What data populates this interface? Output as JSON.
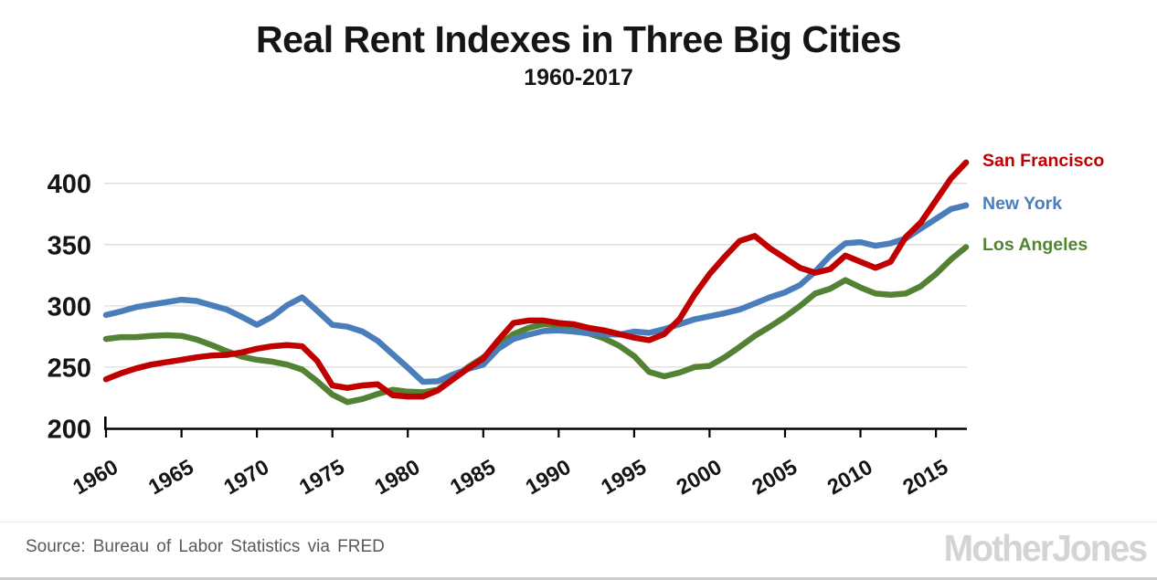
{
  "header": {
    "title": "Real Rent Indexes in Three Big Cities",
    "subtitle": "1960-2017"
  },
  "chart_data": {
    "type": "line",
    "title": "Real Rent Indexes in Three Big Cities",
    "subtitle": "1960-2017",
    "xlabel": "",
    "ylabel": "",
    "xlim": [
      1960,
      2017
    ],
    "ylim": [
      200,
      420
    ],
    "yticks": [
      200,
      250,
      300,
      350,
      400
    ],
    "xticks": [
      1960,
      1965,
      1970,
      1975,
      1980,
      1985,
      1990,
      1995,
      2000,
      2005,
      2010,
      2015
    ],
    "grid": "horizontal",
    "grid_color": "#dcdcdc",
    "axis_color": "#000000",
    "legend_position": "right-outside",
    "x": [
      1960,
      1961,
      1962,
      1963,
      1964,
      1965,
      1966,
      1967,
      1968,
      1969,
      1970,
      1971,
      1972,
      1973,
      1974,
      1975,
      1976,
      1977,
      1978,
      1979,
      1980,
      1981,
      1982,
      1983,
      1984,
      1985,
      1986,
      1987,
      1988,
      1989,
      1990,
      1991,
      1992,
      1993,
      1994,
      1995,
      1996,
      1997,
      1998,
      1999,
      2000,
      2001,
      2002,
      2003,
      2004,
      2005,
      2006,
      2007,
      2008,
      2009,
      2010,
      2011,
      2012,
      2013,
      2014,
      2015,
      2016,
      2017
    ],
    "series": [
      {
        "name": "San Francisco",
        "color": "#c00000",
        "values": [
          240,
          245,
          249,
          252,
          254,
          256,
          258,
          259.5,
          260,
          262,
          265,
          267,
          268,
          267,
          255,
          235,
          233,
          235,
          236,
          227,
          226,
          226,
          231,
          240,
          249,
          257,
          272,
          286,
          288,
          288,
          286,
          285,
          282,
          280,
          277,
          274,
          272,
          277,
          289,
          309,
          326,
          340,
          353,
          357,
          347,
          339,
          331,
          327,
          330,
          341,
          336,
          331,
          336,
          356,
          368,
          386,
          404,
          417
        ]
      },
      {
        "name": "New York",
        "color": "#4a7ebb",
        "values": [
          292.5,
          295.5,
          299,
          301,
          303,
          305,
          304,
          300.5,
          297,
          291,
          284.5,
          291,
          300.5,
          307,
          296,
          284.5,
          283,
          279,
          271.5,
          260.5,
          249.5,
          238,
          238.5,
          244,
          248.5,
          252,
          265,
          273,
          276.5,
          279.5,
          280,
          279,
          277.5,
          277,
          276.5,
          279,
          278,
          281,
          285,
          289,
          291.5,
          294,
          297,
          302,
          307,
          311,
          317,
          328,
          341,
          351,
          352,
          349,
          351,
          355,
          363,
          371,
          379,
          382
        ]
      },
      {
        "name": "Los Angeles",
        "color": "#548235",
        "values": [
          273,
          274.5,
          274.5,
          275.5,
          276,
          275.5,
          272.5,
          268,
          263,
          258.5,
          256,
          254.5,
          252,
          248,
          238.5,
          227.5,
          221.5,
          224,
          228,
          231.5,
          230,
          229.5,
          231.5,
          241,
          250,
          258,
          267,
          277,
          282,
          285,
          284,
          281,
          277.5,
          273.5,
          267.5,
          259,
          246,
          242.5,
          245.5,
          250,
          251,
          258,
          266.5,
          275.5,
          283,
          291,
          300,
          310,
          314,
          321,
          315,
          310,
          309,
          310,
          316,
          326,
          338,
          348
        ]
      }
    ]
  },
  "footer": {
    "source": "Source: Bureau of Labor Statistics via FRED",
    "logo": "MotherJones"
  }
}
